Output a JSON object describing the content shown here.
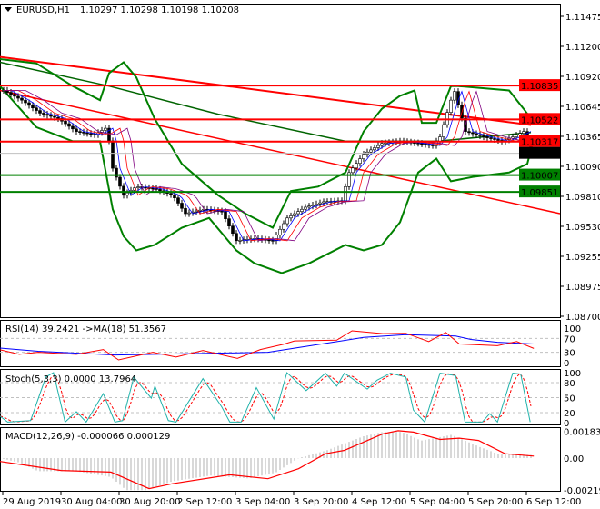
{
  "header": {
    "symbol": "EURUSD,H1",
    "ohlc": "1.10297 1.10298 1.10198 1.10208"
  },
  "chart_data": [
    {
      "type": "line",
      "title": "EURUSD,H1",
      "ylim": [
        1.087,
        1.11475
      ],
      "yticks": [
        "1.11475",
        "1.11200",
        "1.10920",
        "1.10645",
        "1.10365",
        "1.10090",
        "1.09810",
        "1.09530",
        "1.09255",
        "1.08975",
        "1.08700"
      ],
      "levels": [
        {
          "label": "1.10835",
          "value": 1.10835,
          "color": "#ff0000"
        },
        {
          "label": "1.10522",
          "value": 1.10522,
          "color": "#ff0000"
        },
        {
          "label": "1.10317",
          "value": 1.10317,
          "color": "#ff0000"
        },
        {
          "label": "1.10007",
          "value": 1.10007,
          "color": "#008000"
        },
        {
          "label": "1.09851",
          "value": 1.09851,
          "color": "#008000"
        }
      ],
      "current": {
        "label": "1.10208",
        "value": 1.10208
      },
      "close": [
        [
          1,
          1.1079
        ],
        [
          6,
          1.107
        ],
        [
          11,
          1.1058
        ],
        [
          16,
          1.1053
        ],
        [
          21,
          1.1041
        ],
        [
          26,
          1.1038
        ],
        [
          29.5,
          1.1045
        ],
        [
          31,
          1.1007
        ],
        [
          34,
          1.0982
        ],
        [
          37.5,
          1.099
        ],
        [
          42.5,
          1.0988
        ],
        [
          47.5,
          1.0982
        ],
        [
          51,
          1.0965
        ],
        [
          56,
          1.0969
        ],
        [
          61,
          1.0967
        ],
        [
          65,
          1.094
        ],
        [
          70,
          1.0942
        ],
        [
          75,
          1.094
        ],
        [
          79,
          1.0961
        ],
        [
          84,
          1.0971
        ],
        [
          89,
          1.0976
        ],
        [
          94,
          1.0977
        ],
        [
          96,
          1.1003
        ],
        [
          100,
          1.102
        ],
        [
          105,
          1.103
        ],
        [
          110,
          1.1032
        ],
        [
          115,
          1.103
        ],
        [
          119,
          1.1028
        ],
        [
          121,
          1.1036
        ],
        [
          124,
          1.107
        ],
        [
          125,
          1.1078
        ],
        [
          128,
          1.1041
        ],
        [
          133,
          1.1036
        ],
        [
          138,
          1.1032
        ],
        [
          141,
          1.1036
        ],
        [
          144,
          1.1041
        ],
        [
          146,
          1.1021
        ]
      ],
      "bb_upper": [
        [
          0,
          1.1108
        ],
        [
          10,
          1.1104
        ],
        [
          20,
          1.1083
        ],
        [
          27.5,
          1.107
        ],
        [
          30,
          1.1095
        ],
        [
          34,
          1.1105
        ],
        [
          37.5,
          1.1091
        ],
        [
          42.5,
          1.1053
        ],
        [
          50,
          1.1011
        ],
        [
          60,
          1.0982
        ],
        [
          67.5,
          1.0965
        ],
        [
          75,
          1.0952
        ],
        [
          80,
          1.0986
        ],
        [
          87.5,
          1.099
        ],
        [
          95,
          1.1003
        ],
        [
          100,
          1.1041
        ],
        [
          105,
          1.1062
        ],
        [
          110,
          1.1074
        ],
        [
          114,
          1.1079
        ],
        [
          116,
          1.1049
        ],
        [
          120,
          1.1049
        ],
        [
          124,
          1.1083
        ],
        [
          126,
          1.1083
        ],
        [
          140,
          1.1079
        ],
        [
          144,
          1.1062
        ],
        [
          146,
          1.1053
        ]
      ],
      "bb_lower": [
        [
          0,
          1.1083
        ],
        [
          10,
          1.1045
        ],
        [
          20,
          1.1032
        ],
        [
          27.5,
          1.1032
        ],
        [
          31,
          1.0969
        ],
        [
          34,
          1.0944
        ],
        [
          37.5,
          1.0931
        ],
        [
          42.5,
          1.0936
        ],
        [
          50,
          1.0952
        ],
        [
          57.5,
          1.0961
        ],
        [
          65,
          1.0931
        ],
        [
          70,
          1.0919
        ],
        [
          77.5,
          1.091
        ],
        [
          85,
          1.0919
        ],
        [
          95,
          1.0936
        ],
        [
          100,
          1.0931
        ],
        [
          105,
          1.0936
        ],
        [
          110,
          1.0957
        ],
        [
          115,
          1.1003
        ],
        [
          120,
          1.1016
        ],
        [
          124,
          1.0995
        ],
        [
          130,
          1.0999
        ],
        [
          140,
          1.1003
        ],
        [
          145,
          1.1011
        ],
        [
          146,
          1.1024
        ]
      ],
      "ma_long_red": [
        [
          0,
          1.111
        ],
        [
          146,
          1.1047
        ]
      ],
      "trendline_red": [
        [
          0,
          1.1079
        ],
        [
          154,
          1.0965
        ]
      ],
      "ma_green": [
        [
          0,
          1.1105
        ],
        [
          30,
          1.1083
        ],
        [
          60,
          1.1057
        ],
        [
          95,
          1.1032
        ],
        [
          120,
          1.1032
        ],
        [
          146,
          1.104
        ]
      ]
    },
    {
      "type": "line",
      "title": "RSI(14) 39.2421  ->MA(18) 51.3567",
      "ylim": [
        0,
        100
      ],
      "yticks": [
        "100",
        "70",
        "30",
        "0"
      ],
      "rsi": [
        [
          0,
          37
        ],
        [
          5.3,
          24
        ],
        [
          10.5,
          30
        ],
        [
          21,
          24
        ],
        [
          28.4,
          38
        ],
        [
          32.6,
          8
        ],
        [
          42,
          30
        ],
        [
          48.4,
          16
        ],
        [
          55.8,
          35
        ],
        [
          65.3,
          12
        ],
        [
          71.6,
          38
        ],
        [
          77.9,
          53
        ],
        [
          81,
          63
        ],
        [
          92.6,
          65
        ],
        [
          96.8,
          92
        ],
        [
          105.3,
          84
        ],
        [
          111.6,
          85
        ],
        [
          117.9,
          61
        ],
        [
          122.6,
          87
        ],
        [
          126.3,
          54
        ],
        [
          136.8,
          49
        ],
        [
          142.1,
          61
        ],
        [
          146.8,
          41
        ]
      ],
      "ma": [
        [
          0,
          42
        ],
        [
          10.5,
          33
        ],
        [
          31.6,
          22
        ],
        [
          52.6,
          26
        ],
        [
          73.7,
          30
        ],
        [
          84.2,
          47
        ],
        [
          100,
          73
        ],
        [
          111.6,
          81
        ],
        [
          125.3,
          77
        ],
        [
          129.5,
          67
        ],
        [
          136.8,
          59
        ],
        [
          146.8,
          54
        ]
      ]
    },
    {
      "type": "line",
      "title": "Stoch(5,3,3) 0.0000 13.7964",
      "ylim": [
        0,
        100
      ],
      "yticks": [
        "100",
        "80",
        "50",
        "20",
        "0"
      ],
      "main": [
        [
          0,
          13
        ],
        [
          2.1,
          1
        ],
        [
          8.4,
          4
        ],
        [
          12.6,
          91
        ],
        [
          14.7,
          100
        ],
        [
          17.9,
          1
        ],
        [
          21,
          22
        ],
        [
          23.7,
          1
        ],
        [
          28.4,
          58
        ],
        [
          31.6,
          1
        ],
        [
          33.7,
          4
        ],
        [
          36.8,
          91
        ],
        [
          41.6,
          49
        ],
        [
          42.6,
          73
        ],
        [
          46.3,
          4
        ],
        [
          48.4,
          1
        ],
        [
          55.8,
          88
        ],
        [
          61,
          31
        ],
        [
          63.2,
          1
        ],
        [
          66.3,
          1
        ],
        [
          70.5,
          70
        ],
        [
          75.3,
          7
        ],
        [
          78.9,
          100
        ],
        [
          84.2,
          64
        ],
        [
          89.5,
          99
        ],
        [
          92.6,
          73
        ],
        [
          94.7,
          99
        ],
        [
          101,
          67
        ],
        [
          103.7,
          85
        ],
        [
          107.4,
          99
        ],
        [
          111.6,
          91
        ],
        [
          113.7,
          25
        ],
        [
          116.8,
          1
        ],
        [
          121,
          99
        ],
        [
          125.3,
          94
        ],
        [
          127.9,
          1
        ],
        [
          132.6,
          1
        ],
        [
          134.7,
          18
        ],
        [
          136.8,
          1
        ],
        [
          141,
          99
        ],
        [
          143.2,
          97
        ],
        [
          145.8,
          1
        ]
      ]
    },
    {
      "type": "bar",
      "title": "MACD(12,26,9) -0.000066 0.000129",
      "ylim": [
        -0.002193,
        0.001835
      ],
      "yticks": [
        "0.001835",
        "0.00",
        "-0.002193"
      ],
      "signal": [
        [
          0,
          -0.00023
        ],
        [
          10.5,
          -0.00062
        ],
        [
          16.8,
          -0.00085
        ],
        [
          30.5,
          -0.00096
        ],
        [
          41,
          -0.0021
        ],
        [
          47.4,
          -0.00176
        ],
        [
          63.2,
          -0.00115
        ],
        [
          73.7,
          -0.00142
        ],
        [
          82.1,
          -0.00073
        ],
        [
          89.5,
          0.0003
        ],
        [
          94.7,
          0.00053
        ],
        [
          105.3,
          0.00167
        ],
        [
          109.5,
          0.00188
        ],
        [
          113.7,
          0.00179
        ],
        [
          121,
          0.00128
        ],
        [
          126.3,
          0.00137
        ],
        [
          131.6,
          0.00121
        ],
        [
          138.9,
          0.0003
        ],
        [
          146.8,
          0.00014
        ]
      ],
      "histogram": [
        [
          0,
          0
        ],
        [
          5.3,
          -0.0003
        ],
        [
          10.5,
          -0.0009
        ],
        [
          21,
          -0.0009
        ],
        [
          30.5,
          -0.0013
        ],
        [
          34.7,
          -0.0022
        ],
        [
          40,
          -0.0022
        ],
        [
          47.4,
          -0.0016
        ],
        [
          57.9,
          -0.0012
        ],
        [
          68.4,
          -0.0014
        ],
        [
          75.8,
          -0.001
        ],
        [
          82.1,
          0
        ],
        [
          89.5,
          0.0005
        ],
        [
          100,
          0.0015
        ],
        [
          105.3,
          0.0018
        ],
        [
          110.5,
          0.0018
        ],
        [
          115.8,
          0.0012
        ],
        [
          124.2,
          0.0016
        ],
        [
          131.6,
          0.0008
        ],
        [
          136.8,
          0.0003
        ],
        [
          146.8,
          0.0002
        ]
      ]
    }
  ],
  "time_axis": [
    "29 Aug 2019",
    "30 Aug 04:00",
    "30 Aug 20:00",
    "2 Sep 12:00",
    "3 Sep 04:00",
    "3 Sep 20:00",
    "4 Sep 12:00",
    "5 Sep 04:00",
    "5 Sep 20:00",
    "6 Sep 12:00"
  ]
}
